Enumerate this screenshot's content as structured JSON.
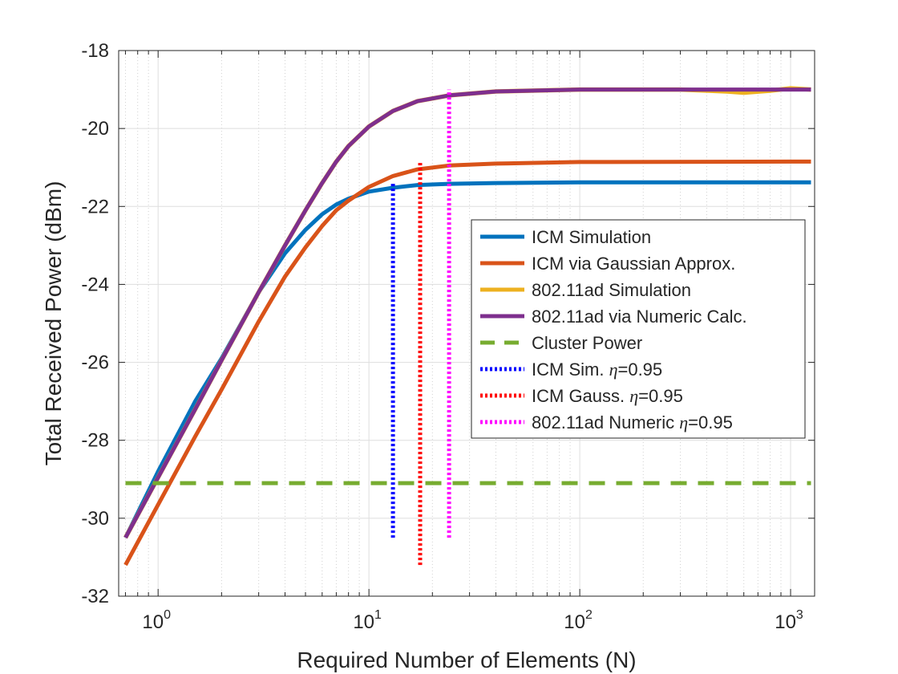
{
  "chart_data": {
    "type": "line",
    "title": "",
    "xlabel": "Required Number of Elements (N)",
    "ylabel": "Total Received Power (dBm)",
    "xscale": "log",
    "xlim": [
      0.65,
      1300
    ],
    "ylim": [
      -32,
      -18
    ],
    "grid": true,
    "legend_position": "center-right",
    "x_ticks": [
      {
        "base": "10",
        "exp": "0",
        "value": 1
      },
      {
        "base": "10",
        "exp": "1",
        "value": 10
      },
      {
        "base": "10",
        "exp": "2",
        "value": 100
      },
      {
        "base": "10",
        "exp": "3",
        "value": 1000
      }
    ],
    "y_ticks": [
      {
        "label": "-18",
        "value": -18
      },
      {
        "label": "-20",
        "value": -20
      },
      {
        "label": "-22",
        "value": -22
      },
      {
        "label": "-24",
        "value": -24
      },
      {
        "label": "-26",
        "value": -26
      },
      {
        "label": "-28",
        "value": -28
      },
      {
        "label": "-30",
        "value": -30
      },
      {
        "label": "-32",
        "value": -32
      }
    ],
    "series": [
      {
        "name": "ICM Simulation",
        "color": "#0072BD",
        "style": "solid",
        "x": [
          0.7,
          1,
          1.5,
          2,
          3,
          4,
          5,
          6,
          7,
          8,
          10,
          13,
          17,
          24,
          40,
          100,
          1000,
          1250
        ],
        "y": [
          -30.5,
          -28.8,
          -27.0,
          -25.9,
          -24.2,
          -23.2,
          -22.6,
          -22.2,
          -21.95,
          -21.8,
          -21.62,
          -21.52,
          -21.45,
          -21.42,
          -21.4,
          -21.38,
          -21.38,
          -21.38
        ]
      },
      {
        "name": "ICM via Gaussian Approx.",
        "color": "#D95319",
        "style": "solid",
        "x": [
          0.7,
          1,
          1.5,
          2,
          3,
          4,
          5,
          6,
          7,
          8,
          10,
          13,
          17,
          24,
          40,
          100,
          1000,
          1250
        ],
        "y": [
          -31.2,
          -29.65,
          -27.9,
          -26.7,
          -24.95,
          -23.8,
          -23.05,
          -22.5,
          -22.1,
          -21.85,
          -21.5,
          -21.22,
          -21.05,
          -20.95,
          -20.9,
          -20.86,
          -20.85,
          -20.85
        ]
      },
      {
        "name": "802.11ad Simulation",
        "color": "#EDB120",
        "style": "solid",
        "x": [
          0.7,
          1,
          1.5,
          2,
          3,
          4,
          5,
          6,
          7,
          8,
          10,
          13,
          17,
          24,
          40,
          100,
          300,
          500,
          600,
          800,
          1000,
          1250
        ],
        "y": [
          -30.5,
          -28.95,
          -27.2,
          -25.95,
          -24.2,
          -23.0,
          -22.1,
          -21.4,
          -20.85,
          -20.45,
          -19.95,
          -19.55,
          -19.3,
          -19.15,
          -19.05,
          -19.0,
          -19.0,
          -19.05,
          -19.08,
          -19.03,
          -18.97,
          -19.0
        ]
      },
      {
        "name": "802.11ad via Numeric Calc.",
        "color": "#7E2F8E",
        "style": "solid",
        "x": [
          0.7,
          1,
          1.5,
          2,
          3,
          4,
          5,
          6,
          7,
          8,
          10,
          13,
          17,
          24,
          40,
          100,
          1000,
          1250
        ],
        "y": [
          -30.5,
          -28.95,
          -27.2,
          -25.95,
          -24.2,
          -23.0,
          -22.1,
          -21.4,
          -20.85,
          -20.45,
          -19.95,
          -19.55,
          -19.3,
          -19.15,
          -19.05,
          -19.0,
          -19.0,
          -19.0
        ]
      },
      {
        "name": "Cluster Power",
        "color": "#77AC30",
        "style": "dashed",
        "x": [
          0.7,
          1250
        ],
        "y": [
          -29.1,
          -29.1
        ]
      },
      {
        "name": "ICM Sim. η=0.95",
        "label_main": "ICM Sim. ",
        "label_symbol": "η",
        "label_rest": "=0.95",
        "color": "#0000FF",
        "style": "dotted",
        "x": [
          13,
          13
        ],
        "y": [
          -30.5,
          -21.4
        ]
      },
      {
        "name": "ICM Gauss. η=0.95",
        "label_main": "ICM Gauss. ",
        "label_symbol": "η",
        "label_rest": "=0.95",
        "color": "#FF0000",
        "style": "dotted",
        "x": [
          17.5,
          17.5
        ],
        "y": [
          -31.2,
          -20.85
        ]
      },
      {
        "name": "802.11ad Numeric η=0.95",
        "label_main": "802.11ad Numeric ",
        "label_symbol": "η",
        "label_rest": "=0.95",
        "color": "#FF00FF",
        "style": "dotted",
        "x": [
          24,
          24
        ],
        "y": [
          -30.5,
          -19.0
        ]
      }
    ]
  }
}
